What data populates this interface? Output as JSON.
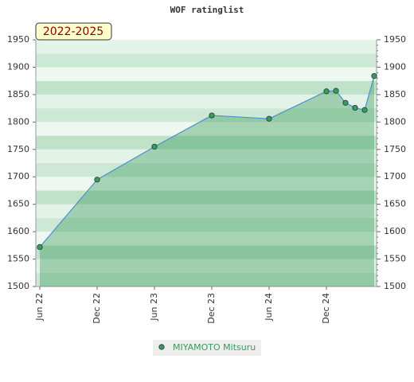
{
  "chart_data": {
    "type": "area",
    "title": "WOF ratinglist",
    "badge": "2022-2025",
    "x": [
      "2022-06",
      "2022-12",
      "2023-06",
      "2023-12",
      "2024-06",
      "2024-12",
      "2025-01",
      "2025-02",
      "2025-03",
      "2025-04",
      "2025-05"
    ],
    "series": [
      {
        "name": "MIYAMOTO Mitsuru",
        "color": "#3a9b5a",
        "line_color": "#4a90d0",
        "values": [
          1572,
          1695,
          1755,
          1812,
          1806,
          1856,
          1857,
          1835,
          1826,
          1822,
          1884
        ]
      }
    ],
    "xlim": [
      "2022-06",
      "2025-05"
    ],
    "xticks": [
      {
        "value": "2022-06",
        "label": "Jun 22"
      },
      {
        "value": "2022-12",
        "label": "Dec 22"
      },
      {
        "value": "2023-06",
        "label": "Jun 23"
      },
      {
        "value": "2023-12",
        "label": "Dec 23"
      },
      {
        "value": "2024-06",
        "label": "Jun 24"
      },
      {
        "value": "2024-12",
        "label": "Dec 24"
      }
    ],
    "ylim": [
      1500,
      1950
    ],
    "yticks": [
      1500,
      1550,
      1600,
      1650,
      1700,
      1750,
      1800,
      1850,
      1900,
      1950
    ]
  }
}
